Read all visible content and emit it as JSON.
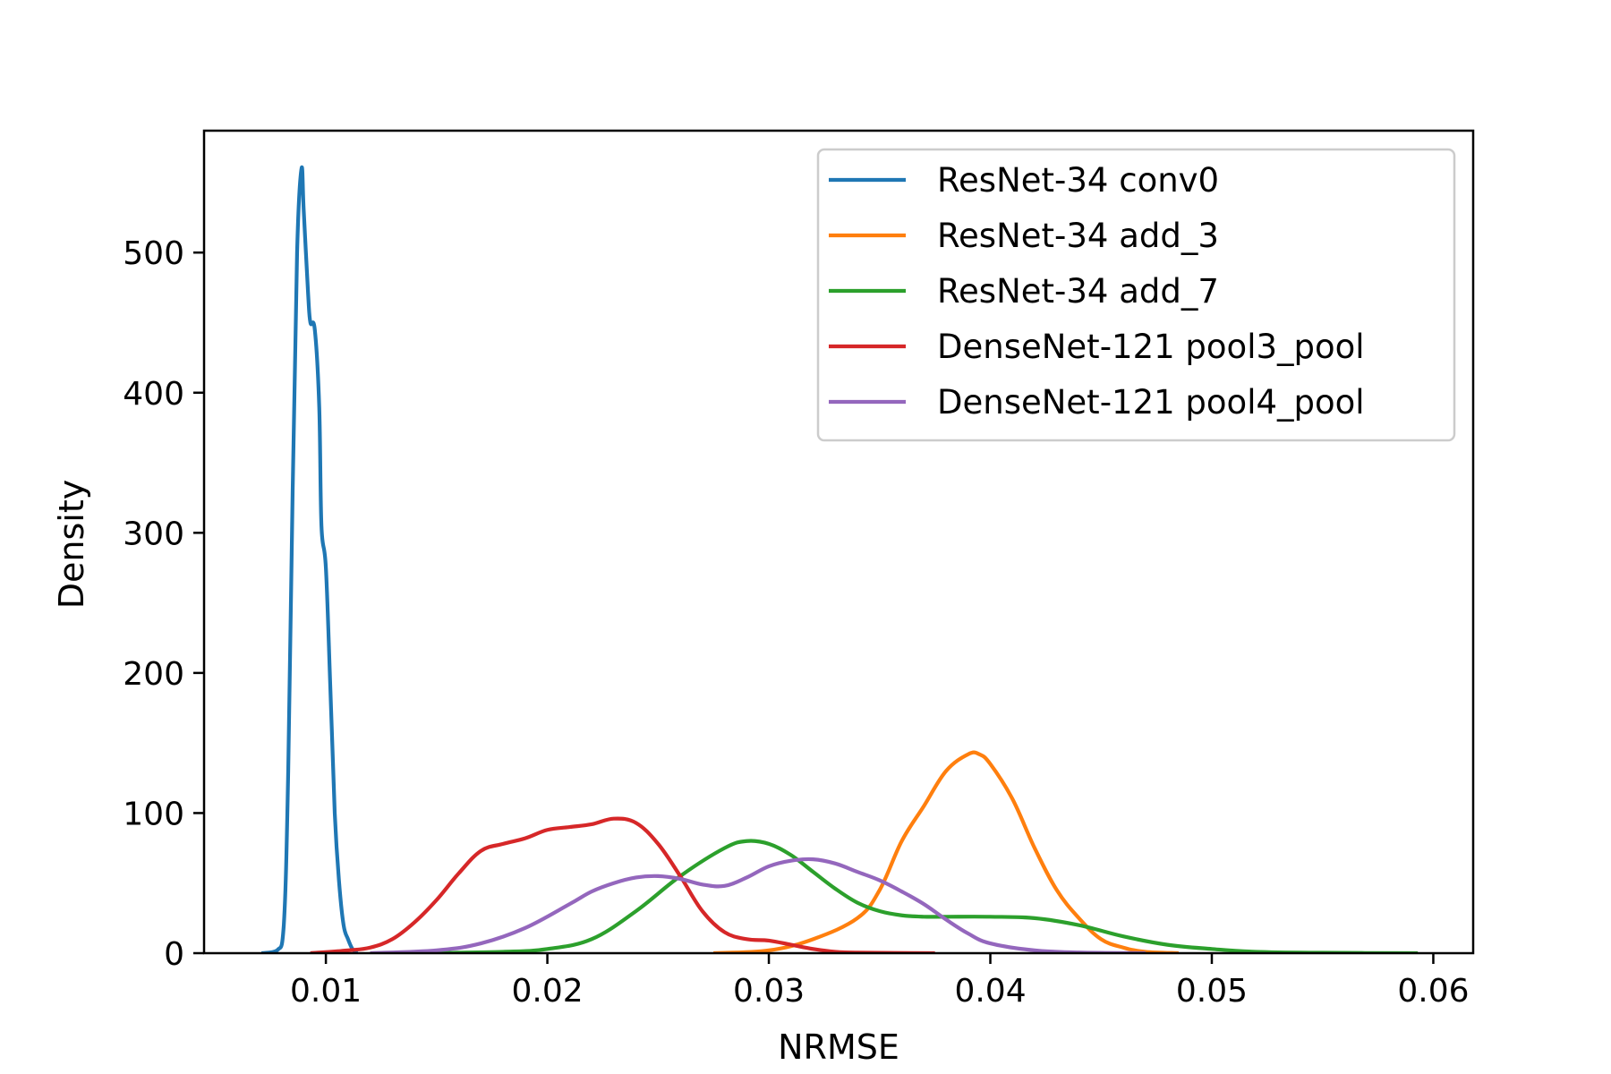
{
  "chart_data": {
    "type": "line",
    "title": "",
    "xlabel": "NRMSE",
    "ylabel": "Density",
    "xlim": [
      0.0045,
      0.0618
    ],
    "ylim": [
      0,
      587
    ],
    "xticks": [
      0.01,
      0.02,
      0.03,
      0.04,
      0.05,
      0.06
    ],
    "xtick_labels": [
      "0.01",
      "0.02",
      "0.03",
      "0.04",
      "0.05",
      "0.06"
    ],
    "yticks": [
      0,
      100,
      200,
      300,
      400,
      500
    ],
    "ytick_labels": [
      "0",
      "100",
      "200",
      "300",
      "400",
      "500"
    ],
    "grid": false,
    "legend_position": "top-right",
    "series": [
      {
        "name": "ResNet-34  conv0",
        "color": "#1f77b4",
        "x": [
          0.0071,
          0.0078,
          0.0081,
          0.0083,
          0.0085,
          0.0087,
          0.0089,
          0.009,
          0.0092,
          0.0093,
          0.0095,
          0.0097,
          0.0098,
          0.01,
          0.0102,
          0.0104,
          0.0106,
          0.0108,
          0.011,
          0.0112,
          0.0114
        ],
        "y": [
          0,
          2,
          20,
          130,
          330,
          500,
          560,
          530,
          470,
          450,
          445,
          390,
          305,
          275,
          190,
          100,
          50,
          20,
          10,
          3,
          0
        ]
      },
      {
        "name": "ResNet-34  add_3",
        "color": "#ff7f0e",
        "x": [
          0.0275,
          0.03,
          0.032,
          0.034,
          0.035,
          0.036,
          0.037,
          0.038,
          0.039,
          0.0395,
          0.04,
          0.041,
          0.042,
          0.043,
          0.044,
          0.045,
          0.046,
          0.047,
          0.0485
        ],
        "y": [
          0,
          2,
          10,
          25,
          45,
          80,
          105,
          130,
          142,
          142,
          135,
          110,
          75,
          45,
          25,
          10,
          4,
          1,
          0
        ]
      },
      {
        "name": "ResNet-34  add_7",
        "color": "#2ca02c",
        "x": [
          0.014,
          0.018,
          0.02,
          0.022,
          0.024,
          0.026,
          0.028,
          0.029,
          0.03,
          0.031,
          0.032,
          0.033,
          0.034,
          0.035,
          0.036,
          0.037,
          0.038,
          0.04,
          0.042,
          0.044,
          0.046,
          0.048,
          0.05,
          0.052,
          0.055,
          0.0593
        ],
        "y": [
          0,
          1,
          3,
          10,
          30,
          55,
          75,
          80,
          78,
          70,
          58,
          46,
          36,
          30,
          27,
          26,
          26,
          26,
          25,
          20,
          12,
          6,
          3,
          1,
          0.3,
          0
        ]
      },
      {
        "name": "DenseNet-121  pool3_pool",
        "color": "#d62728",
        "x": [
          0.0093,
          0.011,
          0.012,
          0.013,
          0.014,
          0.015,
          0.016,
          0.017,
          0.018,
          0.019,
          0.02,
          0.021,
          0.022,
          0.023,
          0.024,
          0.025,
          0.026,
          0.027,
          0.028,
          0.029,
          0.03,
          0.031,
          0.032,
          0.033,
          0.034,
          0.0375
        ],
        "y": [
          0,
          2,
          4,
          10,
          22,
          38,
          57,
          73,
          78,
          82,
          88,
          90,
          92,
          96,
          93,
          78,
          55,
          30,
          15,
          10,
          9,
          6,
          3,
          1,
          0.4,
          0
        ]
      },
      {
        "name": "DenseNet-121  pool4_pool",
        "color": "#9467bd",
        "x": [
          0.012,
          0.015,
          0.017,
          0.019,
          0.021,
          0.022,
          0.023,
          0.024,
          0.025,
          0.026,
          0.027,
          0.028,
          0.029,
          0.03,
          0.031,
          0.032,
          0.033,
          0.034,
          0.035,
          0.036,
          0.037,
          0.038,
          0.039,
          0.04,
          0.042,
          0.044,
          0.047
        ],
        "y": [
          0,
          2,
          7,
          18,
          35,
          44,
          50,
          54,
          55,
          53,
          49,
          48,
          54,
          62,
          66,
          67,
          64,
          58,
          52,
          44,
          35,
          24,
          14,
          7,
          2,
          0.5,
          0
        ]
      }
    ]
  }
}
